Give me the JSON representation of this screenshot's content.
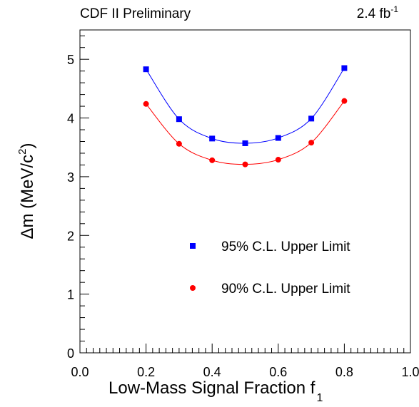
{
  "header": {
    "left_text": "CDF II Preliminary",
    "lumi_value": "2.4 fb",
    "lumi_exponent": "-1"
  },
  "chart_data": {
    "type": "line",
    "x": [
      0.2,
      0.3,
      0.4,
      0.5,
      0.6,
      0.7,
      0.8
    ],
    "series": [
      {
        "name": "95% C.L. Upper Limit",
        "color": "#0000ff",
        "marker": "square",
        "values": [
          4.83,
          3.98,
          3.65,
          3.57,
          3.66,
          3.99,
          4.85
        ]
      },
      {
        "name": "90% C.L. Upper Limit",
        "color": "#ff0000",
        "marker": "circle",
        "values": [
          4.24,
          3.56,
          3.28,
          3.21,
          3.29,
          3.58,
          4.29
        ]
      }
    ],
    "xlim": [
      0.0,
      1.0
    ],
    "ylim": [
      0,
      5.5
    ],
    "x_ticks": [
      {
        "v": 0.0,
        "label": "0.0"
      },
      {
        "v": 0.2,
        "label": "0.2"
      },
      {
        "v": 0.4,
        "label": "0.4"
      },
      {
        "v": 0.6,
        "label": "0.6"
      },
      {
        "v": 0.8,
        "label": "0.8"
      },
      {
        "v": 1.0,
        "label": "1.0"
      }
    ],
    "y_ticks": [
      {
        "v": 0,
        "label": "0"
      },
      {
        "v": 1,
        "label": "1"
      },
      {
        "v": 2,
        "label": "2"
      },
      {
        "v": 3,
        "label": "3"
      },
      {
        "v": 4,
        "label": "4"
      },
      {
        "v": 5,
        "label": "5"
      }
    ],
    "xlabel": {
      "main": "Low-Mass Signal Fraction f",
      "sub": "1"
    },
    "ylabel": {
      "main": "Δm (MeV/c",
      "sup": "2",
      "tail": ")"
    },
    "legend_placement": "lower-right",
    "grid": false
  }
}
